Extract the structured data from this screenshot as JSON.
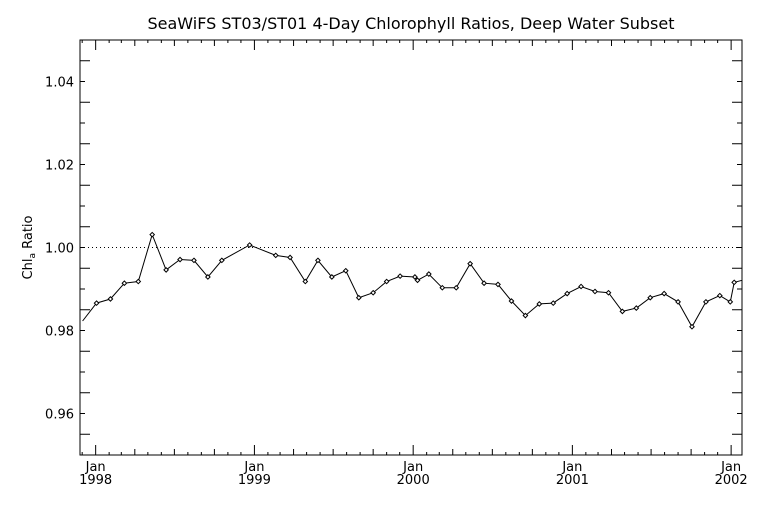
{
  "chart_data": {
    "type": "line",
    "title": "SeaWiFS ST03/ST01 4-Day Chlorophyll Ratios, Deep Water Subset",
    "ylabel": "Chl_a Ratio",
    "ylabel_main": "Chl",
    "ylabel_sub": "a",
    "ylabel_rest": " Ratio",
    "xlabel": "",
    "xlim": [
      "1997-11-26",
      "2002-01-26"
    ],
    "ylim": [
      0.95,
      1.05
    ],
    "reference_line": {
      "y": 1.0,
      "style": "dotted"
    },
    "yticks": [
      {
        "value": 0.96,
        "label": "0.96"
      },
      {
        "value": 0.98,
        "label": "0.98"
      },
      {
        "value": 1.0,
        "label": "1.00"
      },
      {
        "value": 1.02,
        "label": "1.02"
      },
      {
        "value": 1.04,
        "label": "1.04"
      }
    ],
    "xticks": [
      {
        "date": "1998-01-01",
        "month": "Jan",
        "year": "1998"
      },
      {
        "date": "1999-01-01",
        "month": "Jan",
        "year": "1999"
      },
      {
        "date": "2000-01-01",
        "month": "Jan",
        "year": "2000"
      },
      {
        "date": "2001-01-01",
        "month": "Jan",
        "year": "2001"
      },
      {
        "date": "2002-01-01",
        "month": "Jan",
        "year": "2002"
      }
    ],
    "series": [
      {
        "marker": "diamond",
        "x": [
          "1997-12-02",
          "1998-01-03",
          "1998-02-04",
          "1998-03-08",
          "1998-04-09",
          "1998-05-11",
          "1998-06-12",
          "1998-07-14",
          "1998-08-15",
          "1998-09-16",
          "1998-10-18",
          "1998-12-21",
          "1999-02-19",
          "1999-03-24",
          "1999-04-28",
          "1999-05-27",
          "1999-06-28",
          "1999-07-30",
          "1999-08-29",
          "1999-10-01",
          "1999-11-01",
          "1999-12-02",
          "2000-01-05",
          "2000-01-11",
          "2000-02-06",
          "2000-03-08",
          "2000-04-09",
          "2000-05-11",
          "2000-06-12",
          "2000-07-14",
          "2000-08-14",
          "2000-09-15",
          "2000-10-17",
          "2000-11-18",
          "2000-12-20",
          "2001-01-21",
          "2001-02-22",
          "2001-03-25",
          "2001-04-26",
          "2001-05-28",
          "2001-06-29",
          "2001-07-31",
          "2001-09-01",
          "2001-10-03",
          "2001-11-04",
          "2001-12-06",
          "2001-12-30",
          "2002-01-08",
          "2002-01-26"
        ],
        "values": [
          0.9823,
          0.9866,
          0.9876,
          0.9914,
          0.9918,
          1.0031,
          0.9946,
          0.9971,
          0.9969,
          0.9929,
          0.9969,
          1.0006,
          0.9981,
          0.9976,
          0.9918,
          0.9969,
          0.9929,
          0.9944,
          0.9879,
          0.9891,
          0.9918,
          0.9931,
          0.9929,
          0.9921,
          0.9936,
          0.9903,
          0.9903,
          0.9961,
          0.9914,
          0.9911,
          0.9871,
          0.9836,
          0.9864,
          0.9866,
          0.9889,
          0.9906,
          0.9894,
          0.9891,
          0.9846,
          0.9854,
          0.9879,
          0.9889,
          0.9869,
          0.9809,
          0.9869,
          0.9884,
          0.9869,
          0.9916,
          0.9921
        ]
      }
    ]
  }
}
